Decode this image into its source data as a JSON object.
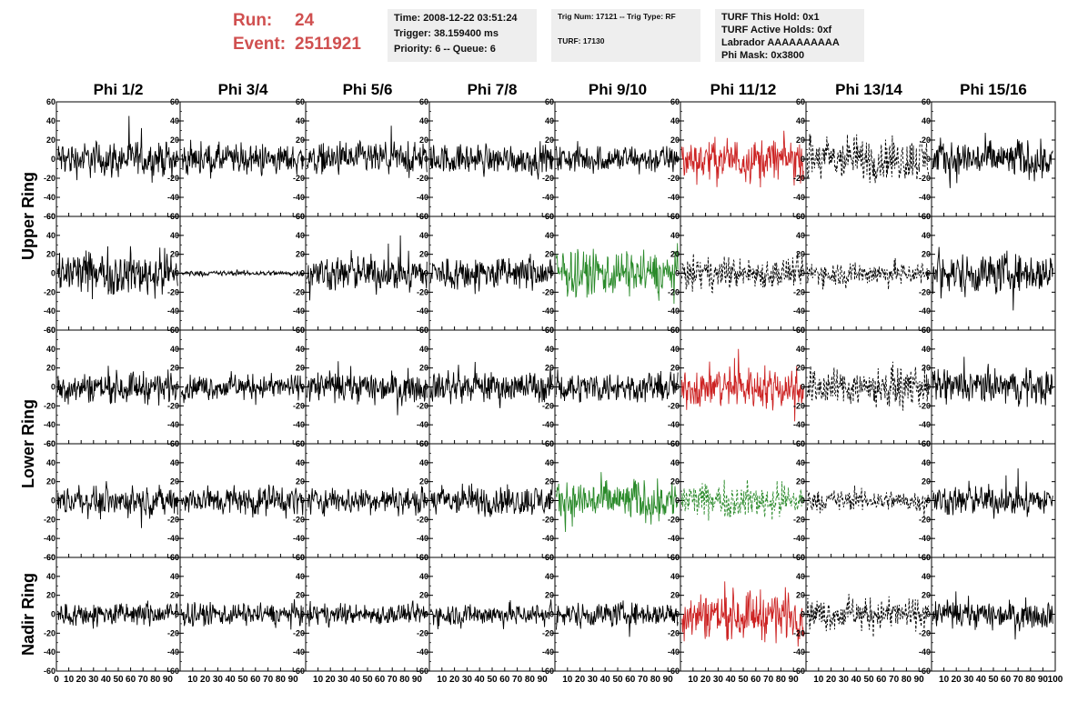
{
  "run": {
    "run_label": "Run:",
    "run_value": "24",
    "event_label": "Event:",
    "event_value": "2511921"
  },
  "info_time": {
    "time": "Time: 2008-12-22 03:51:24",
    "trigger": "Trigger: 38.159400 ms",
    "priority": "Priority: 6 -- Queue: 6"
  },
  "info_trig": {
    "trig": "Trig Num: 17121 -- Trig Type: RF",
    "turf": "TURF: 17130"
  },
  "info_turf": {
    "this_hold": "TURF This Hold: 0x1",
    "active_holds": "TURF Active Holds: 0xf",
    "labrador": "Labrador AAAAAAAAAA",
    "phi_mask": "Phi Mask: 0x3800"
  },
  "colors": {
    "normal": "#000000",
    "red": "#cc2222",
    "green": "#2a8a2a"
  },
  "chart_data": {
    "type": "line",
    "columns": [
      "Phi 1/2",
      "Phi 3/4",
      "Phi 5/6",
      "Phi 7/8",
      "Phi 9/10",
      "Phi 11/12",
      "Phi 13/14",
      "Phi 15/16"
    ],
    "ring_labels": [
      {
        "label": "Upper Ring",
        "rows": [
          0,
          1
        ]
      },
      {
        "label": "Lower Ring",
        "rows": [
          2,
          3
        ]
      },
      {
        "label": "Nadir Ring",
        "rows": [
          4,
          4
        ]
      }
    ],
    "xlim": [
      0,
      100
    ],
    "ylim": [
      -60,
      60
    ],
    "x_ticks": [
      "0",
      "10",
      "20",
      "30",
      "40",
      "50",
      "60",
      "70",
      "80",
      "90",
      "100"
    ],
    "y_ticks": [
      "60",
      "40",
      "20",
      "0",
      "-20",
      "-40",
      "-60"
    ],
    "y_tick_values": [
      60,
      40,
      20,
      0,
      -20,
      -40,
      -60
    ],
    "x_tick_values": [
      0,
      10,
      20,
      30,
      40,
      50,
      60,
      70,
      80,
      90,
      100
    ],
    "panels": [
      [
        {
          "color": "black",
          "style": "solid",
          "amp": 20
        },
        {
          "color": "black",
          "style": "solid",
          "amp": 17
        },
        {
          "color": "black",
          "style": "solid",
          "amp": 18
        },
        {
          "color": "black",
          "style": "solid",
          "amp": 17
        },
        {
          "color": "black",
          "style": "solid",
          "amp": 16
        },
        {
          "color": "red",
          "style": "solid",
          "amp": 24
        },
        {
          "color": "black",
          "style": "dashed",
          "amp": 26
        },
        {
          "color": "black",
          "style": "solid",
          "amp": 22
        }
      ],
      [
        {
          "color": "black",
          "style": "solid",
          "amp": 26
        },
        {
          "color": "black",
          "style": "solid",
          "amp": 3
        },
        {
          "color": "black",
          "style": "solid",
          "amp": 20
        },
        {
          "color": "black",
          "style": "solid",
          "amp": 20
        },
        {
          "color": "green",
          "style": "solid",
          "amp": 26
        },
        {
          "color": "black",
          "style": "dashed",
          "amp": 18
        },
        {
          "color": "black",
          "style": "dashed",
          "amp": 14
        },
        {
          "color": "black",
          "style": "solid",
          "amp": 23
        }
      ],
      [
        {
          "color": "black",
          "style": "solid",
          "amp": 18
        },
        {
          "color": "black",
          "style": "solid",
          "amp": 14
        },
        {
          "color": "black",
          "style": "solid",
          "amp": 18
        },
        {
          "color": "black",
          "style": "solid",
          "amp": 18
        },
        {
          "color": "black",
          "style": "solid",
          "amp": 17
        },
        {
          "color": "red",
          "style": "solid",
          "amp": 24
        },
        {
          "color": "black",
          "style": "dashed",
          "amp": 22
        },
        {
          "color": "black",
          "style": "solid",
          "amp": 20
        }
      ],
      [
        {
          "color": "black",
          "style": "solid",
          "amp": 16
        },
        {
          "color": "black",
          "style": "solid",
          "amp": 17
        },
        {
          "color": "black",
          "style": "solid",
          "amp": 15
        },
        {
          "color": "black",
          "style": "solid",
          "amp": 18
        },
        {
          "color": "green",
          "style": "solid",
          "amp": 24
        },
        {
          "color": "green",
          "style": "dashed",
          "amp": 20
        },
        {
          "color": "black",
          "style": "dashed",
          "amp": 12
        },
        {
          "color": "black",
          "style": "solid",
          "amp": 17
        }
      ],
      [
        {
          "color": "black",
          "style": "solid",
          "amp": 14
        },
        {
          "color": "black",
          "style": "solid",
          "amp": 13
        },
        {
          "color": "black",
          "style": "solid",
          "amp": 12
        },
        {
          "color": "black",
          "style": "solid",
          "amp": 13
        },
        {
          "color": "black",
          "style": "solid",
          "amp": 14
        },
        {
          "color": "red",
          "style": "solid",
          "amp": 28
        },
        {
          "color": "black",
          "style": "dashed",
          "amp": 18
        },
        {
          "color": "black",
          "style": "solid",
          "amp": 16
        }
      ]
    ]
  }
}
